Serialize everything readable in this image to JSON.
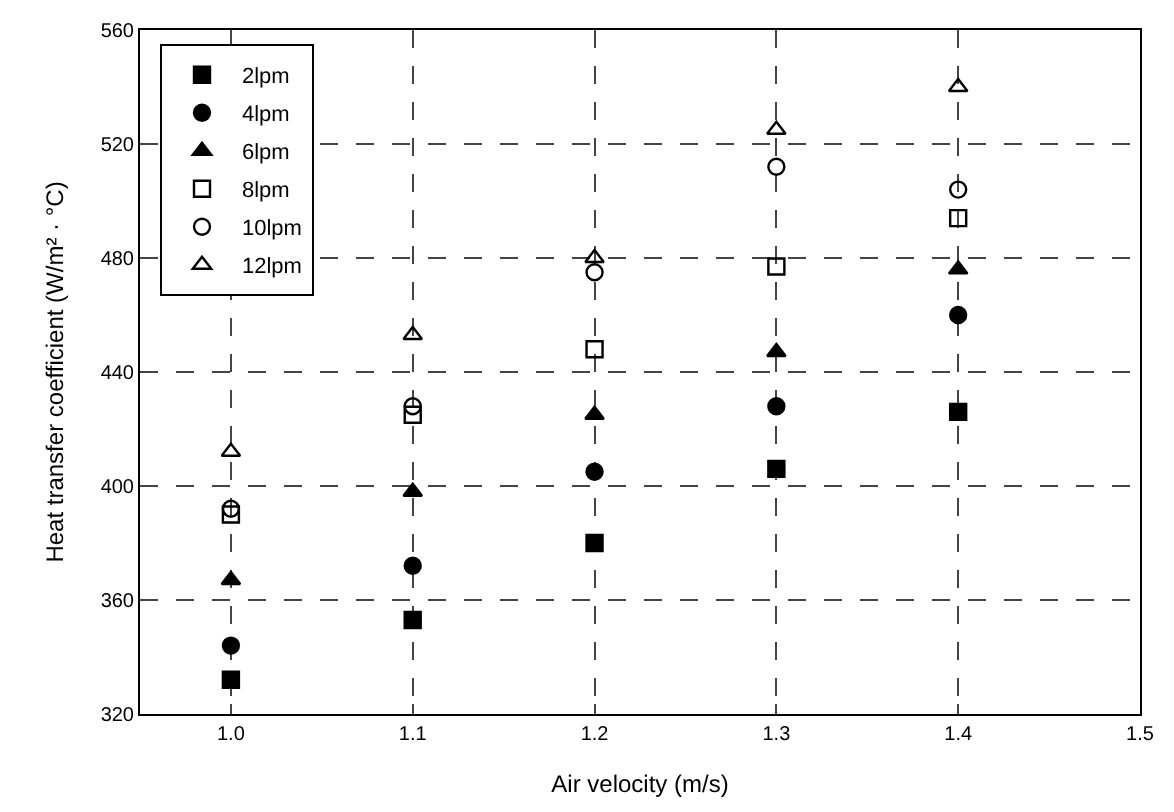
{
  "chart_data": {
    "type": "scatter",
    "xlabel": "Air velocity (m/s)",
    "ylabel": "Heat transfer coefficient (W/m² · °C)",
    "x": [
      1.0,
      1.1,
      1.2,
      1.3,
      1.4
    ],
    "series": [
      {
        "name": "2lpm",
        "color": "#000000",
        "marker": "square",
        "values": [
          332,
          353,
          380,
          406,
          426
        ]
      },
      {
        "name": "4lpm",
        "color": "#000000",
        "marker": "circle",
        "values": [
          344,
          372,
          405,
          428,
          460
        ]
      },
      {
        "name": "6lpm",
        "color": "#000000",
        "marker": "triangle",
        "values": [
          367,
          398,
          425,
          447,
          476
        ]
      },
      {
        "name": "8lpm",
        "color": "#000000",
        "marker": "square-open",
        "values": [
          390,
          425,
          448,
          477,
          494
        ]
      },
      {
        "name": "10lpm",
        "color": "#000000",
        "marker": "circle-open",
        "values": [
          392,
          428,
          475,
          512,
          504
        ]
      },
      {
        "name": "12lpm",
        "color": "#000000",
        "marker": "triangle-open",
        "values": [
          412,
          453,
          480,
          525,
          540
        ]
      }
    ],
    "xlim": [
      0.95,
      1.5
    ],
    "xticks": [
      {
        "value": 1.0,
        "label": "1.0"
      },
      1.1,
      1.2,
      1.3,
      1.4,
      1.5
    ],
    "ylim": [
      320,
      560
    ],
    "yticks": [
      320,
      360,
      400,
      440,
      480,
      520,
      560
    ],
    "grid": true,
    "legend": "top left"
  }
}
